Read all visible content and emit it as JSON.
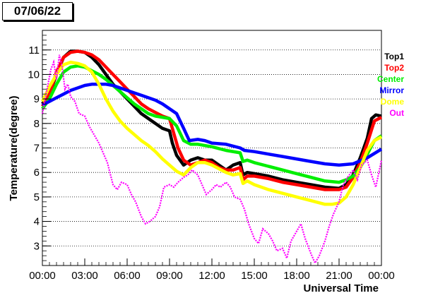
{
  "chart_data": {
    "type": "line",
    "title": "07/06/22",
    "xlabel": "Universal Time",
    "ylabel": "Temperature(degree)",
    "xlim": [
      0,
      24
    ],
    "ylim": [
      2.2,
      11.8
    ],
    "x_ticks": [
      "00:00",
      "03:00",
      "06:00",
      "09:00",
      "12:00",
      "15:00",
      "18:00",
      "21:00",
      "00:00"
    ],
    "y_ticks": [
      3,
      4,
      5,
      6,
      7,
      8,
      9,
      10,
      11
    ],
    "grid": "horizontal-dotted",
    "legend": "right",
    "series": [
      {
        "name": "Top1",
        "color": "#000000",
        "points": [
          [
            0,
            8.8
          ],
          [
            0.5,
            9.2
          ],
          [
            1,
            10.0
          ],
          [
            1.5,
            10.7
          ],
          [
            2,
            10.95
          ],
          [
            2.5,
            10.95
          ],
          [
            3,
            10.9
          ],
          [
            3.5,
            10.7
          ],
          [
            4,
            10.4
          ],
          [
            4.5,
            10.0
          ],
          [
            5,
            9.6
          ],
          [
            5.5,
            9.3
          ],
          [
            6,
            9.0
          ],
          [
            6.5,
            8.7
          ],
          [
            7,
            8.4
          ],
          [
            7.5,
            8.2
          ],
          [
            8,
            8.0
          ],
          [
            8.5,
            7.8
          ],
          [
            9,
            7.7
          ],
          [
            9.2,
            7.2
          ],
          [
            9.5,
            6.7
          ],
          [
            10,
            6.3
          ],
          [
            10.5,
            6.5
          ],
          [
            11,
            6.6
          ],
          [
            11.5,
            6.5
          ],
          [
            12,
            6.5
          ],
          [
            12.5,
            6.3
          ],
          [
            13,
            6.1
          ],
          [
            13.5,
            6.3
          ],
          [
            14,
            6.4
          ],
          [
            14.2,
            5.9
          ],
          [
            14.5,
            6.0
          ],
          [
            15,
            5.95
          ],
          [
            16,
            5.85
          ],
          [
            17,
            5.7
          ],
          [
            18,
            5.6
          ],
          [
            19,
            5.5
          ],
          [
            20,
            5.4
          ],
          [
            21,
            5.35
          ],
          [
            21.5,
            5.5
          ],
          [
            22,
            5.9
          ],
          [
            22.5,
            6.6
          ],
          [
            23,
            7.4
          ],
          [
            23.3,
            8.2
          ],
          [
            23.6,
            8.35
          ],
          [
            24,
            8.3
          ]
        ]
      },
      {
        "name": "Top2",
        "color": "#ff0000",
        "points": [
          [
            0,
            8.7
          ],
          [
            0.5,
            9.2
          ],
          [
            1,
            10.1
          ],
          [
            1.5,
            10.7
          ],
          [
            2,
            10.9
          ],
          [
            2.5,
            10.95
          ],
          [
            3,
            10.9
          ],
          [
            3.5,
            10.8
          ],
          [
            4,
            10.6
          ],
          [
            4.5,
            10.3
          ],
          [
            5,
            10.0
          ],
          [
            5.5,
            9.7
          ],
          [
            6,
            9.4
          ],
          [
            6.5,
            9.1
          ],
          [
            7,
            8.8
          ],
          [
            7.5,
            8.6
          ],
          [
            8,
            8.45
          ],
          [
            8.5,
            8.3
          ],
          [
            9,
            8.2
          ],
          [
            9.3,
            7.6
          ],
          [
            9.6,
            7.0
          ],
          [
            10,
            6.5
          ],
          [
            10.5,
            6.3
          ],
          [
            11,
            6.4
          ],
          [
            11.5,
            6.5
          ],
          [
            12,
            6.4
          ],
          [
            12.5,
            6.2
          ],
          [
            13,
            6.1
          ],
          [
            13.5,
            6.1
          ],
          [
            14,
            6.2
          ],
          [
            14.2,
            5.7
          ],
          [
            14.5,
            5.85
          ],
          [
            15,
            5.85
          ],
          [
            16,
            5.75
          ],
          [
            17,
            5.6
          ],
          [
            18,
            5.5
          ],
          [
            19,
            5.4
          ],
          [
            20,
            5.3
          ],
          [
            21,
            5.3
          ],
          [
            21.5,
            5.4
          ],
          [
            22,
            5.8
          ],
          [
            22.5,
            6.4
          ],
          [
            23,
            7.2
          ],
          [
            23.5,
            8.1
          ],
          [
            24,
            8.25
          ]
        ]
      },
      {
        "name": "Center",
        "color": "#00ee00",
        "points": [
          [
            0,
            8.6
          ],
          [
            0.5,
            9.0
          ],
          [
            1,
            9.6
          ],
          [
            1.5,
            10.1
          ],
          [
            2,
            10.3
          ],
          [
            2.5,
            10.35
          ],
          [
            3,
            10.3
          ],
          [
            3.5,
            10.15
          ],
          [
            4,
            10.0
          ],
          [
            4.5,
            9.8
          ],
          [
            5,
            9.55
          ],
          [
            5.5,
            9.3
          ],
          [
            6,
            9.05
          ],
          [
            6.5,
            8.8
          ],
          [
            7,
            8.6
          ],
          [
            7.5,
            8.4
          ],
          [
            8,
            8.3
          ],
          [
            8.5,
            8.25
          ],
          [
            9,
            8.2
          ],
          [
            9.5,
            7.9
          ],
          [
            10,
            7.3
          ],
          [
            10.5,
            7.15
          ],
          [
            11,
            7.15
          ],
          [
            12,
            7.05
          ],
          [
            13,
            6.9
          ],
          [
            14,
            6.8
          ],
          [
            14.2,
            6.45
          ],
          [
            14.5,
            6.5
          ],
          [
            15,
            6.4
          ],
          [
            16,
            6.25
          ],
          [
            17,
            6.1
          ],
          [
            18,
            5.95
          ],
          [
            19,
            5.8
          ],
          [
            20,
            5.65
          ],
          [
            21,
            5.6
          ],
          [
            21.5,
            5.7
          ],
          [
            22,
            5.85
          ],
          [
            22.5,
            6.2
          ],
          [
            23,
            6.75
          ],
          [
            23.5,
            7.3
          ],
          [
            24,
            7.5
          ]
        ]
      },
      {
        "name": "Mirror",
        "color": "#0000ff",
        "points": [
          [
            0,
            8.75
          ],
          [
            0.5,
            8.9
          ],
          [
            1,
            9.05
          ],
          [
            1.5,
            9.2
          ],
          [
            2,
            9.35
          ],
          [
            2.5,
            9.45
          ],
          [
            3,
            9.55
          ],
          [
            3.5,
            9.6
          ],
          [
            4,
            9.6
          ],
          [
            4.5,
            9.6
          ],
          [
            5,
            9.55
          ],
          [
            5.5,
            9.45
          ],
          [
            6,
            9.35
          ],
          [
            6.5,
            9.25
          ],
          [
            7,
            9.15
          ],
          [
            7.5,
            9.05
          ],
          [
            8,
            8.95
          ],
          [
            8.5,
            8.8
          ],
          [
            9,
            8.6
          ],
          [
            9.5,
            8.4
          ],
          [
            10,
            7.8
          ],
          [
            10.4,
            7.3
          ],
          [
            11,
            7.35
          ],
          [
            11.5,
            7.3
          ],
          [
            12,
            7.2
          ],
          [
            13,
            7.15
          ],
          [
            14,
            7.0
          ],
          [
            14.3,
            6.9
          ],
          [
            15,
            6.85
          ],
          [
            16,
            6.75
          ],
          [
            17,
            6.65
          ],
          [
            18,
            6.55
          ],
          [
            19,
            6.45
          ],
          [
            20,
            6.35
          ],
          [
            21,
            6.3
          ],
          [
            22,
            6.35
          ],
          [
            23,
            6.6
          ],
          [
            24,
            6.95
          ]
        ]
      },
      {
        "name": "Dome",
        "color": "#ffff00",
        "points": [
          [
            0,
            8.9
          ],
          [
            0.5,
            9.5
          ],
          [
            1,
            10.0
          ],
          [
            1.5,
            10.4
          ],
          [
            2,
            10.5
          ],
          [
            2.5,
            10.45
          ],
          [
            3,
            10.35
          ],
          [
            3.5,
            10.1
          ],
          [
            4,
            9.6
          ],
          [
            4.5,
            9.0
          ],
          [
            5,
            8.5
          ],
          [
            5.5,
            8.1
          ],
          [
            6,
            7.8
          ],
          [
            6.5,
            7.55
          ],
          [
            7,
            7.3
          ],
          [
            7.5,
            7.1
          ],
          [
            8,
            6.85
          ],
          [
            8.5,
            6.55
          ],
          [
            9,
            6.3
          ],
          [
            9.5,
            6.05
          ],
          [
            10,
            5.9
          ],
          [
            10.5,
            6.2
          ],
          [
            11,
            6.4
          ],
          [
            11.5,
            6.4
          ],
          [
            12,
            6.3
          ],
          [
            12.5,
            6.15
          ],
          [
            13,
            6.0
          ],
          [
            13.5,
            5.9
          ],
          [
            14,
            5.95
          ],
          [
            14.2,
            5.55
          ],
          [
            14.5,
            5.65
          ],
          [
            15,
            5.5
          ],
          [
            16,
            5.3
          ],
          [
            17,
            5.15
          ],
          [
            18,
            5.0
          ],
          [
            19,
            4.85
          ],
          [
            20,
            4.7
          ],
          [
            20.5,
            4.7
          ],
          [
            21,
            4.75
          ],
          [
            21.5,
            5.0
          ],
          [
            22,
            5.5
          ],
          [
            22.5,
            6.2
          ],
          [
            23,
            6.9
          ],
          [
            23.5,
            7.3
          ],
          [
            24,
            7.45
          ]
        ]
      },
      {
        "name": "Out",
        "color": "#ff00ff",
        "points": [
          [
            0,
            8.4
          ],
          [
            0.3,
            9.3
          ],
          [
            0.6,
            10.2
          ],
          [
            0.8,
            10.5
          ],
          [
            1,
            9.8
          ],
          [
            1.2,
            10.8
          ],
          [
            1.4,
            10.3
          ],
          [
            1.6,
            9.4
          ],
          [
            1.8,
            9.6
          ],
          [
            2,
            9.1
          ],
          [
            2.3,
            8.9
          ],
          [
            2.6,
            8.4
          ],
          [
            3,
            8.3
          ],
          [
            3.3,
            7.9
          ],
          [
            3.6,
            7.6
          ],
          [
            4,
            7.2
          ],
          [
            4.3,
            6.8
          ],
          [
            4.6,
            6.4
          ],
          [
            5,
            5.5
          ],
          [
            5.3,
            5.3
          ],
          [
            5.6,
            5.6
          ],
          [
            6,
            5.5
          ],
          [
            6.3,
            5.1
          ],
          [
            6.6,
            4.8
          ],
          [
            7,
            4.2
          ],
          [
            7.3,
            3.9
          ],
          [
            7.6,
            4.0
          ],
          [
            8,
            4.2
          ],
          [
            8.3,
            4.6
          ],
          [
            8.6,
            5.4
          ],
          [
            9,
            5.5
          ],
          [
            9.3,
            5.4
          ],
          [
            9.6,
            5.6
          ],
          [
            10,
            5.8
          ],
          [
            10.3,
            5.9
          ],
          [
            10.6,
            6.1
          ],
          [
            11,
            5.9
          ],
          [
            11.3,
            5.5
          ],
          [
            11.6,
            5.1
          ],
          [
            12,
            5.3
          ],
          [
            12.3,
            5.5
          ],
          [
            12.6,
            5.4
          ],
          [
            13,
            5.6
          ],
          [
            13.3,
            5.4
          ],
          [
            13.6,
            5.0
          ],
          [
            14,
            4.9
          ],
          [
            14.3,
            4.5
          ],
          [
            14.6,
            3.9
          ],
          [
            15,
            3.3
          ],
          [
            15.3,
            3.1
          ],
          [
            15.6,
            3.7
          ],
          [
            16,
            3.5
          ],
          [
            16.3,
            3.2
          ],
          [
            16.6,
            2.8
          ],
          [
            17,
            2.9
          ],
          [
            17.3,
            2.5
          ],
          [
            17.6,
            3.2
          ],
          [
            18,
            3.6
          ],
          [
            18.3,
            3.9
          ],
          [
            18.6,
            3.3
          ],
          [
            19,
            2.7
          ],
          [
            19.3,
            2.3
          ],
          [
            19.6,
            2.6
          ],
          [
            20,
            3.2
          ],
          [
            20.3,
            3.8
          ],
          [
            20.6,
            4.3
          ],
          [
            21,
            4.8
          ],
          [
            21.3,
            5.5
          ],
          [
            21.6,
            5.8
          ],
          [
            22,
            6.1
          ],
          [
            22.3,
            5.7
          ],
          [
            22.6,
            6.3
          ],
          [
            23,
            6.5
          ],
          [
            23.3,
            5.9
          ],
          [
            23.6,
            5.4
          ],
          [
            24,
            6.5
          ]
        ]
      }
    ]
  }
}
